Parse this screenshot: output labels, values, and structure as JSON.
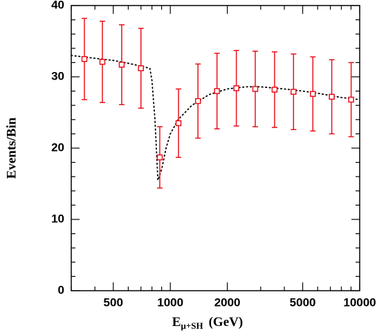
{
  "chart_data": {
    "type": "scatter",
    "xlabel": "E",
    "xlabel_subscript": "μ+SH",
    "xlabel_unit": "(GeV)",
    "ylabel": "Events/Bin",
    "xscale": "log",
    "xlim": [
      300,
      10000
    ],
    "ylim": [
      0,
      40
    ],
    "xticks": [
      500,
      1000,
      2000,
      5000,
      10000
    ],
    "xminorticks": [
      300,
      400,
      600,
      700,
      800,
      900,
      3000,
      4000,
      6000,
      7000,
      8000,
      9000
    ],
    "yticks": [
      0,
      10,
      20,
      30,
      40
    ],
    "yminorticks": [
      2,
      4,
      6,
      8,
      12,
      14,
      16,
      18,
      22,
      24,
      26,
      28,
      32,
      34,
      36,
      38
    ],
    "points": {
      "color": "#e8101a",
      "x": [
        352,
        438,
        554,
        700,
        880,
        1105,
        1400,
        1764,
        2232,
        2809,
        3553,
        4473,
        5660,
        7120,
        9010
      ],
      "values": [
        32.5,
        32.1,
        31.7,
        31.2,
        18.7,
        23.5,
        26.6,
        28.0,
        28.4,
        28.3,
        28.2,
        27.9,
        27.6,
        27.2,
        26.8
      ],
      "errors": [
        5.7,
        5.7,
        5.6,
        5.6,
        4.3,
        4.8,
        5.2,
        5.3,
        5.3,
        5.3,
        5.3,
        5.3,
        5.2,
        5.2,
        5.2
      ]
    },
    "curve": {
      "color": "#000000",
      "x": [
        300,
        400,
        500,
        600,
        700,
        780,
        800,
        830,
        860,
        900,
        950,
        1000,
        1100,
        1300,
        1600,
        2000,
        2500,
        3000,
        4000,
        5000,
        6000,
        8000,
        10000
      ],
      "values": [
        33.0,
        32.6,
        32.3,
        31.9,
        31.5,
        31.2,
        29.5,
        24,
        15.5,
        17,
        20,
        22,
        24,
        26,
        27.5,
        28.3,
        28.6,
        28.6,
        28.3,
        28,
        27.7,
        27.1,
        26.8
      ]
    }
  }
}
